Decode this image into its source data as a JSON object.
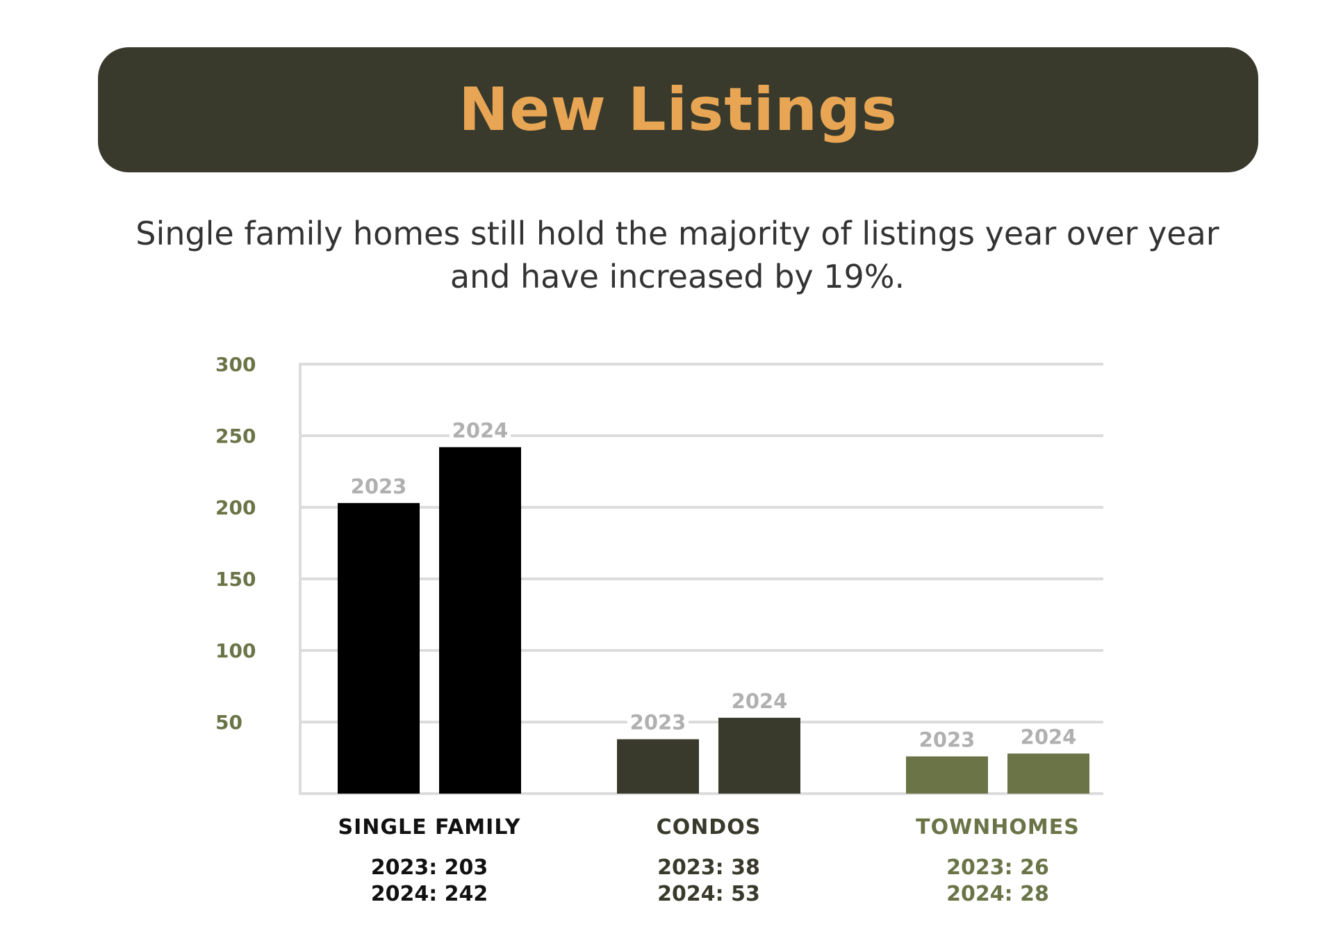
{
  "header": {
    "title": "New Listings"
  },
  "subtitle": {
    "line1": "Single family homes still hold the majority of listings year over year",
    "line2": "and have increased by 19%."
  },
  "colors": {
    "banner": "#393a2c",
    "title": "#e8a655",
    "axis_tick": "#6a7447",
    "bar_year_label": "#b0b0b0",
    "grid": "#dcdcdc"
  },
  "chart_data": {
    "type": "bar",
    "ylim": [
      0,
      300
    ],
    "yticks": [
      50,
      100,
      150,
      200,
      250,
      300
    ],
    "grid": true,
    "categories": [
      "SINGLE FAMILY",
      "CONDOS",
      "TOWNHOMES"
    ],
    "series": [
      {
        "name": "2023",
        "values": [
          203,
          38,
          26
        ]
      },
      {
        "name": "2024",
        "values": [
          242,
          53,
          28
        ]
      }
    ],
    "category_colors": [
      "#000000",
      "#393a2c",
      "#6a7447"
    ],
    "category_label_colors": [
      "#111111",
      "#393a2c",
      "#6a7447"
    ],
    "summaries": [
      [
        "2023: 203",
        "2024: 242"
      ],
      [
        "2023: 38",
        "2024: 53"
      ],
      [
        "2023: 26",
        "2024: 28"
      ]
    ]
  }
}
